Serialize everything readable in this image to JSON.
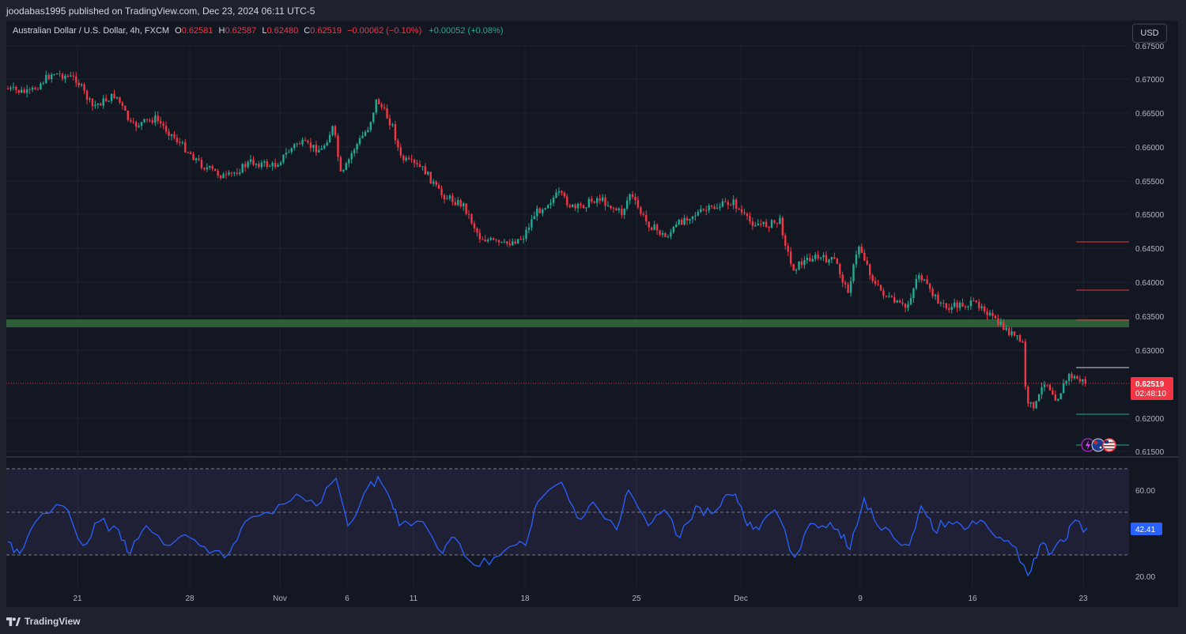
{
  "header": {
    "published": "joodabas1995 published on TradingView.com, Dec 23, 2024 06:11 UTC-5"
  },
  "legend": {
    "symbol": "Australian Dollar / U.S. Dollar, 4h, FXCM",
    "o_label": "O",
    "o_value": "0.62581",
    "h_label": "H",
    "h_value": "0.62587",
    "l_label": "L",
    "l_value": "0.62480",
    "c_label": "C",
    "c_value": "0.62519",
    "change": "−0.00062 (−0.10%)",
    "spread": "+0.00052 (+0.08%)"
  },
  "currency_button": "USD",
  "price_axis": {
    "ticks": [
      "0.67500",
      "0.67000",
      "0.66500",
      "0.66000",
      "0.65500",
      "0.65000",
      "0.64500",
      "0.64000",
      "0.63500",
      "0.63000",
      "0.62000",
      "0.61500"
    ],
    "last_price": "0.62519",
    "countdown": "02:48:10"
  },
  "rsi_axis": {
    "ticks": [
      "60.00",
      "20.00"
    ],
    "value": "42.41"
  },
  "time_axis": {
    "ticks": [
      "21",
      "28",
      "Nov",
      "6",
      "11",
      "18",
      "25",
      "Dec",
      "9",
      "16",
      "23"
    ]
  },
  "colors": {
    "bull": "#22ab94",
    "bear": "#f23645",
    "zone": "#2e5e37",
    "rsi_line": "#2962ff",
    "rsi_band": "#7e57c2"
  },
  "icons": [
    "lightning-icon",
    "au-flag-icon",
    "us-flag-icon"
  ],
  "branding": {
    "logo_text": "TradingView"
  }
}
